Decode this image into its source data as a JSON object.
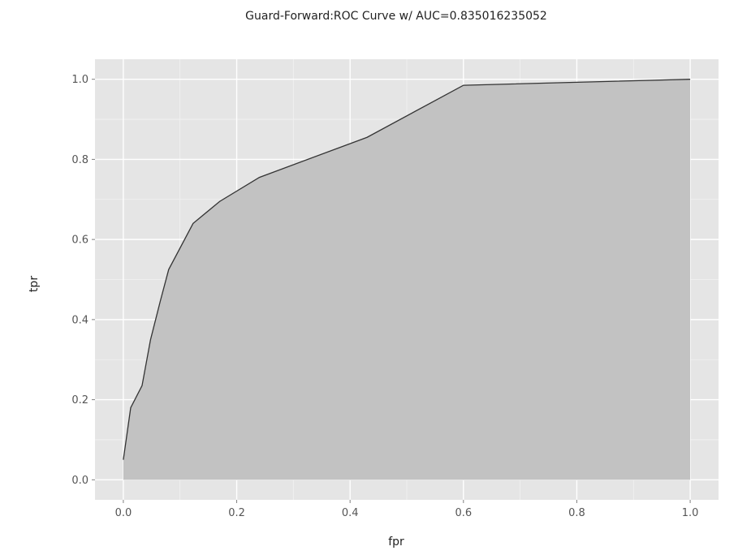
{
  "chart_data": {
    "type": "area",
    "title": "Guard-Forward:ROC Curve w/ AUC=0.835016235052",
    "xlabel": "fpr",
    "ylabel": "tpr",
    "xlim": [
      -0.05,
      1.05
    ],
    "ylim": [
      -0.05,
      1.05
    ],
    "x_ticks": [
      0.0,
      0.2,
      0.4,
      0.6,
      0.8,
      1.0
    ],
    "y_ticks": [
      0.0,
      0.2,
      0.4,
      0.6,
      0.8,
      1.0
    ],
    "x_tick_labels": [
      "0.0",
      "0.2",
      "0.4",
      "0.6",
      "0.8",
      "1.0"
    ],
    "y_tick_labels": [
      "0.0",
      "0.2",
      "0.4",
      "0.6",
      "0.8",
      "1.0"
    ],
    "grid": true,
    "colors": {
      "panel_background": "#e5e5e5",
      "grid_major": "#ffffff",
      "area_fill": "#c2c2c2",
      "line": "#333333"
    },
    "series": [
      {
        "x": [
          0.0,
          0.013,
          0.033,
          0.048,
          0.065,
          0.08,
          0.123,
          0.17,
          0.24,
          0.43,
          0.6,
          1.0
        ],
        "y": [
          0.05,
          0.18,
          0.235,
          0.35,
          0.445,
          0.525,
          0.64,
          0.695,
          0.755,
          0.855,
          0.985,
          1.0
        ]
      }
    ]
  }
}
